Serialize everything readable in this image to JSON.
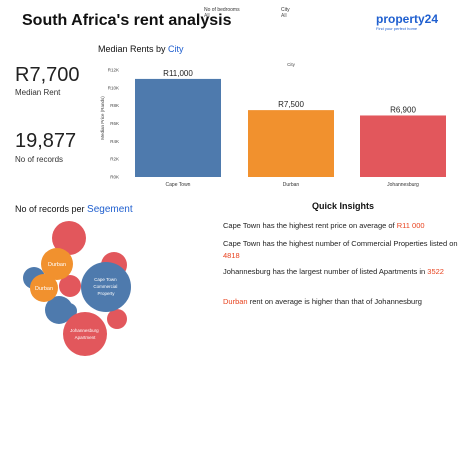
{
  "header": {
    "title": "South Africa's rent analysis",
    "filters": [
      {
        "label": "No of bedrooms",
        "value": "All"
      },
      {
        "label": "City",
        "value": "All"
      }
    ],
    "logo_text": "property24",
    "logo_tagline": "Find your perfect home"
  },
  "kpis": [
    {
      "value": "R7,700",
      "label": "Median Rent"
    },
    {
      "value": "19,877",
      "label": "No of records"
    }
  ],
  "bar_section": {
    "title_prefix": "Median Rents by ",
    "title_accent": "City"
  },
  "bubble_section": {
    "title_prefix": "No of records per ",
    "title_accent": "Segement"
  },
  "insights": {
    "title": "Quick Insights",
    "items": [
      {
        "pre": "Cape Town has the highest rent price on average of ",
        "hl": "R11 000",
        "post": ""
      },
      {
        "pre": " Cape Town has the highest number of Commercial Properties listed on ",
        "hl": "4818",
        "post": ""
      },
      {
        "pre": "Johannesburg has the largest number of listed Apartments in ",
        "hl": "3522",
        "post": ""
      },
      {
        "pre": "",
        "hl": "Durban",
        "post": " rent on average is higher than that of Johannesburg"
      }
    ]
  },
  "colors": {
    "accent": "#1f5fcf",
    "highlight": "#e8431f",
    "red": "#e2575c",
    "orange": "#f1912e",
    "blue": "#4e7aad"
  },
  "chart_data": [
    {
      "type": "bar",
      "title": "Median Rents by City",
      "legend_title": "City",
      "ylabel": "Median Price (Rands)",
      "xlabel": "",
      "categories": [
        "Cape Town",
        "Durban",
        "Johannesburg"
      ],
      "values": [
        11000,
        7500,
        6900
      ],
      "data_labels": [
        "R11,000",
        "R7,500",
        "R6,900"
      ],
      "colors": [
        "#4e7aad",
        "#f1912e",
        "#e2575c"
      ],
      "ylim": [
        0,
        12000
      ],
      "yticks": [
        0,
        2000,
        4000,
        6000,
        8000,
        10000,
        12000
      ],
      "ytick_labels": [
        "R0K",
        "R2K",
        "R4K",
        "R6K",
        "R8K",
        "R10K",
        "R12K"
      ],
      "grid": false
    },
    {
      "type": "bubble",
      "title": "No of records per Segement",
      "labels": [
        "Cape Town Commercial Property",
        "Johannesburg Apartment",
        "Durban",
        "Durban"
      ],
      "values": [
        4818,
        3522,
        null,
        null
      ],
      "grid": false
    }
  ]
}
